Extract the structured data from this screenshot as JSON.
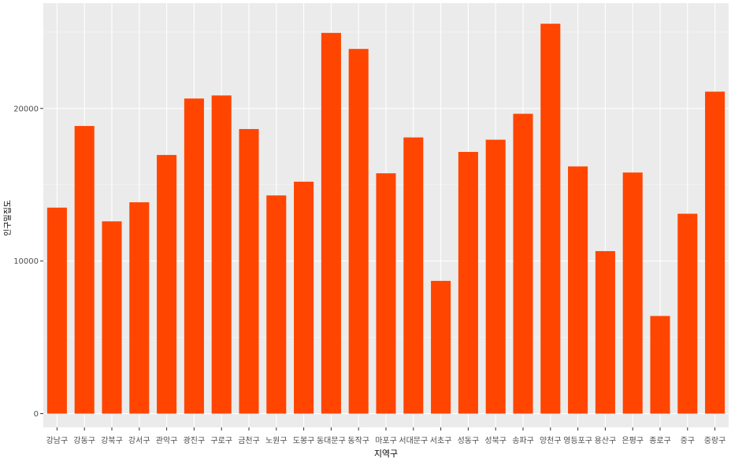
{
  "chart_data": {
    "type": "bar",
    "xlabel": "지역구",
    "ylabel": "인구밀집도",
    "categories": [
      "강남구",
      "강동구",
      "강북구",
      "강서구",
      "관악구",
      "광진구",
      "구로구",
      "금천구",
      "노원구",
      "도봉구",
      "동대문구",
      "동작구",
      "마포구",
      "서대문구",
      "서초구",
      "성동구",
      "성북구",
      "송파구",
      "양천구",
      "영등포구",
      "용산구",
      "은평구",
      "종로구",
      "중구",
      "중랑구"
    ],
    "values": [
      13500,
      18850,
      12600,
      13850,
      16950,
      20650,
      20850,
      18650,
      14300,
      15200,
      24950,
      23900,
      15750,
      18100,
      8700,
      17150,
      17950,
      19650,
      25550,
      16200,
      10650,
      15800,
      6400,
      13100,
      21100
    ],
    "ylim": [
      -900,
      26900
    ],
    "y_ticks": [
      0,
      10000,
      20000
    ],
    "y_tick_labels": [
      "0",
      "10000",
      "20000"
    ],
    "grid": true,
    "colors": {
      "bar": "#FF4500",
      "panel": "#EBEBEB",
      "grid_major": "#FFFFFF"
    }
  }
}
